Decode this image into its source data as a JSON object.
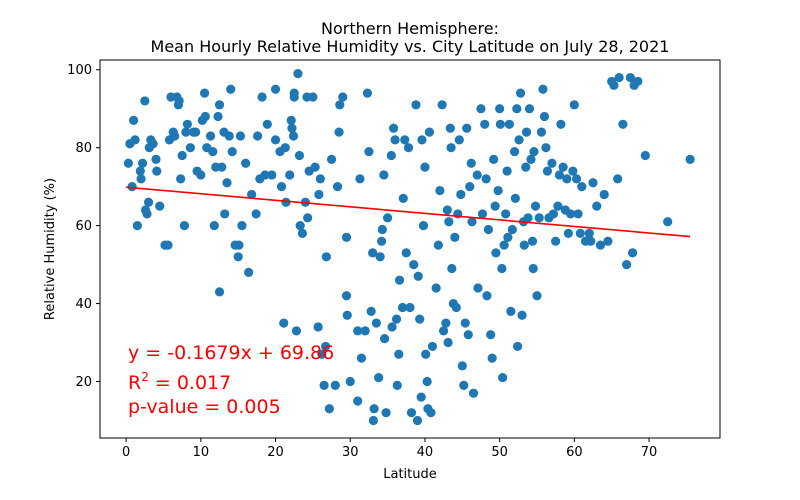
{
  "chart_data": {
    "type": "scatter",
    "title_line1": "Northern Hemisphere:",
    "title_line2": "Mean Hourly Relative Humidity vs. City Latitude  on July 28, 2021",
    "xlabel": "Latitude",
    "ylabel": "Relative Humidity (%)",
    "xlim": [
      -3.5,
      79.5
    ],
    "ylim": [
      5.5,
      102.5
    ],
    "x_ticks": [
      0,
      10,
      20,
      30,
      40,
      50,
      60,
      70
    ],
    "y_ticks": [
      20,
      40,
      60,
      80,
      100
    ],
    "marker_color": "#1f77b4",
    "regression": {
      "slope": -0.1679,
      "intercept": 69.86,
      "x_range": [
        0,
        75.5
      ],
      "color": "#ff0000"
    },
    "annotations": {
      "equation": "y = -0.1679x + 69.86",
      "r2_base": "R",
      "r2_sup": "2",
      "r2_rest": " = 0.017",
      "pvalue": "p-value = 0.005",
      "color": "#ff0000"
    },
    "points": [
      [
        0.3,
        76
      ],
      [
        0.5,
        81
      ],
      [
        0.8,
        70
      ],
      [
        1,
        87
      ],
      [
        1.2,
        82
      ],
      [
        1.5,
        60
      ],
      [
        1.9,
        74
      ],
      [
        2,
        72
      ],
      [
        2.2,
        76
      ],
      [
        2.5,
        92
      ],
      [
        2.6,
        64
      ],
      [
        2.8,
        63
      ],
      [
        3,
        66
      ],
      [
        3.1,
        80
      ],
      [
        3.3,
        82
      ],
      [
        3.6,
        81
      ],
      [
        4,
        77
      ],
      [
        4.1,
        74
      ],
      [
        4.5,
        65
      ],
      [
        5.2,
        55
      ],
      [
        5.6,
        55
      ],
      [
        5.8,
        82
      ],
      [
        6,
        93
      ],
      [
        6.3,
        84
      ],
      [
        6.5,
        83
      ],
      [
        6.8,
        93
      ],
      [
        7,
        91
      ],
      [
        7.1,
        92
      ],
      [
        7.3,
        72
      ],
      [
        7.5,
        78
      ],
      [
        7.8,
        60
      ],
      [
        8,
        84
      ],
      [
        8.2,
        86
      ],
      [
        8.6,
        80
      ],
      [
        9,
        84
      ],
      [
        9.3,
        84
      ],
      [
        9.5,
        74
      ],
      [
        10,
        73
      ],
      [
        10.2,
        87
      ],
      [
        10.5,
        94
      ],
      [
        10.6,
        88
      ],
      [
        10.8,
        80
      ],
      [
        11.3,
        83
      ],
      [
        11.6,
        79
      ],
      [
        11.8,
        60
      ],
      [
        12,
        75
      ],
      [
        12.3,
        88
      ],
      [
        12.5,
        91
      ],
      [
        12.5,
        43
      ],
      [
        12.8,
        75
      ],
      [
        13.1,
        84
      ],
      [
        13.2,
        63
      ],
      [
        13.5,
        71
      ],
      [
        13.8,
        83
      ],
      [
        14,
        95
      ],
      [
        14.2,
        79
      ],
      [
        14.6,
        55
      ],
      [
        15,
        52
      ],
      [
        15.1,
        55
      ],
      [
        15.3,
        83
      ],
      [
        15.5,
        60
      ],
      [
        16,
        76
      ],
      [
        16.4,
        48
      ],
      [
        16.8,
        68
      ],
      [
        17.4,
        63
      ],
      [
        17.6,
        83
      ],
      [
        17.9,
        72
      ],
      [
        18.2,
        93
      ],
      [
        18.6,
        73
      ],
      [
        18.9,
        86
      ],
      [
        19.5,
        73
      ],
      [
        20,
        82
      ],
      [
        20,
        95
      ],
      [
        20.6,
        79
      ],
      [
        20.8,
        70
      ],
      [
        21.1,
        35
      ],
      [
        21.3,
        80
      ],
      [
        21.4,
        66
      ],
      [
        21.9,
        73
      ],
      [
        22.1,
        87
      ],
      [
        22.2,
        85
      ],
      [
        22.4,
        83
      ],
      [
        22.5,
        93
      ],
      [
        22.5,
        94
      ],
      [
        22.8,
        33
      ],
      [
        23,
        99
      ],
      [
        23.2,
        78
      ],
      [
        23.3,
        60
      ],
      [
        23.6,
        58
      ],
      [
        24,
        66
      ],
      [
        24.2,
        93
      ],
      [
        24.3,
        62
      ],
      [
        24.5,
        74
      ],
      [
        25,
        93
      ],
      [
        25.3,
        75
      ],
      [
        25.7,
        34
      ],
      [
        25.8,
        68
      ],
      [
        26,
        72
      ],
      [
        26.2,
        27
      ],
      [
        26.5,
        19
      ],
      [
        26.7,
        29
      ],
      [
        26.8,
        52
      ],
      [
        27.2,
        13
      ],
      [
        27.5,
        77
      ],
      [
        28,
        19
      ],
      [
        28.3,
        70
      ],
      [
        28.5,
        84
      ],
      [
        28.6,
        91
      ],
      [
        29,
        93
      ],
      [
        29.5,
        57
      ],
      [
        29.5,
        42
      ],
      [
        29.6,
        37
      ],
      [
        30,
        20
      ],
      [
        31,
        15
      ],
      [
        31,
        33
      ],
      [
        31.3,
        72
      ],
      [
        31.5,
        26
      ],
      [
        32,
        33
      ],
      [
        32.3,
        94
      ],
      [
        32.5,
        79
      ],
      [
        32.8,
        38
      ],
      [
        33,
        53
      ],
      [
        33.1,
        10
      ],
      [
        33.2,
        13
      ],
      [
        33.5,
        35
      ],
      [
        33.8,
        21
      ],
      [
        34,
        52
      ],
      [
        34.2,
        56
      ],
      [
        34.3,
        59
      ],
      [
        34.5,
        73
      ],
      [
        34.6,
        31
      ],
      [
        34.8,
        12
      ],
      [
        35,
        62
      ],
      [
        35.5,
        78
      ],
      [
        35.6,
        34
      ],
      [
        35.8,
        85
      ],
      [
        36,
        82
      ],
      [
        36.2,
        36
      ],
      [
        36.3,
        19
      ],
      [
        36.5,
        27
      ],
      [
        36.6,
        46
      ],
      [
        37,
        39
      ],
      [
        37.1,
        67
      ],
      [
        37.3,
        82
      ],
      [
        37.5,
        53
      ],
      [
        37.8,
        80
      ],
      [
        38,
        39
      ],
      [
        38.2,
        12
      ],
      [
        38.5,
        50
      ],
      [
        38.8,
        91
      ],
      [
        39,
        10
      ],
      [
        39.1,
        47
      ],
      [
        39.3,
        36
      ],
      [
        39.5,
        16
      ],
      [
        39.6,
        82
      ],
      [
        39.8,
        60
      ],
      [
        40,
        75
      ],
      [
        40.1,
        27
      ],
      [
        40.3,
        20
      ],
      [
        40.4,
        13
      ],
      [
        40.6,
        84
      ],
      [
        40.8,
        12
      ],
      [
        41,
        29
      ],
      [
        41.5,
        44
      ],
      [
        41.8,
        55
      ],
      [
        42,
        69
      ],
      [
        42.3,
        91
      ],
      [
        42.5,
        33
      ],
      [
        42.8,
        35
      ],
      [
        43,
        64
      ],
      [
        43.1,
        30
      ],
      [
        43.2,
        61
      ],
      [
        43.4,
        85
      ],
      [
        43.5,
        80
      ],
      [
        43.6,
        49
      ],
      [
        43.8,
        40
      ],
      [
        44,
        57
      ],
      [
        44.2,
        39
      ],
      [
        44.4,
        63
      ],
      [
        44.6,
        82
      ],
      [
        44.8,
        68
      ],
      [
        45,
        24
      ],
      [
        45.2,
        19
      ],
      [
        45.4,
        35
      ],
      [
        45.6,
        85
      ],
      [
        45.8,
        32
      ],
      [
        46,
        70
      ],
      [
        46.2,
        76
      ],
      [
        46.3,
        61
      ],
      [
        46.5,
        17
      ],
      [
        47,
        73
      ],
      [
        47.1,
        44
      ],
      [
        47.5,
        90
      ],
      [
        47.7,
        63
      ],
      [
        48,
        86
      ],
      [
        48.2,
        72
      ],
      [
        48.3,
        42
      ],
      [
        48.5,
        59
      ],
      [
        48.8,
        32
      ],
      [
        49,
        26
      ],
      [
        49.2,
        77
      ],
      [
        49.4,
        65
      ],
      [
        49.5,
        53
      ],
      [
        49.8,
        69
      ],
      [
        50,
        90
      ],
      [
        50.1,
        86
      ],
      [
        50.3,
        49
      ],
      [
        50.4,
        21
      ],
      [
        50.6,
        55
      ],
      [
        50.8,
        63
      ],
      [
        51,
        74
      ],
      [
        51.1,
        57
      ],
      [
        51.3,
        86
      ],
      [
        51.5,
        38
      ],
      [
        51.7,
        59
      ],
      [
        52,
        79
      ],
      [
        52.1,
        67
      ],
      [
        52.3,
        90
      ],
      [
        52.4,
        29
      ],
      [
        52.6,
        82
      ],
      [
        52.8,
        94
      ],
      [
        53,
        37
      ],
      [
        53.2,
        61
      ],
      [
        53.3,
        55
      ],
      [
        53.5,
        75
      ],
      [
        53.6,
        84
      ],
      [
        53.8,
        62
      ],
      [
        54,
        90
      ],
      [
        54.2,
        77
      ],
      [
        54.4,
        56
      ],
      [
        54.5,
        49
      ],
      [
        54.6,
        79
      ],
      [
        54.8,
        65
      ],
      [
        55,
        42
      ],
      [
        55.3,
        62
      ],
      [
        55.6,
        84
      ],
      [
        55.8,
        95
      ],
      [
        56,
        88
      ],
      [
        56.2,
        80
      ],
      [
        56.4,
        74
      ],
      [
        56.6,
        62
      ],
      [
        57,
        76
      ],
      [
        57.2,
        63
      ],
      [
        57.5,
        56
      ],
      [
        57.8,
        65
      ],
      [
        58,
        73
      ],
      [
        58.2,
        86
      ],
      [
        58.5,
        75
      ],
      [
        58.8,
        64
      ],
      [
        59,
        72
      ],
      [
        59.2,
        58
      ],
      [
        59.5,
        63
      ],
      [
        59.8,
        74
      ],
      [
        60,
        91
      ],
      [
        60.3,
        72
      ],
      [
        60.5,
        63
      ],
      [
        60.8,
        58
      ],
      [
        61,
        70
      ],
      [
        61.5,
        56
      ],
      [
        62,
        58
      ],
      [
        62.2,
        56
      ],
      [
        62.5,
        71
      ],
      [
        63,
        65
      ],
      [
        63.5,
        55
      ],
      [
        64,
        68
      ],
      [
        64.5,
        56
      ],
      [
        65,
        97
      ],
      [
        65.3,
        96
      ],
      [
        65.8,
        72
      ],
      [
        66,
        98
      ],
      [
        66.5,
        86
      ],
      [
        67,
        50
      ],
      [
        67.5,
        98
      ],
      [
        67.8,
        53
      ],
      [
        68,
        96
      ],
      [
        68.5,
        97
      ],
      [
        69.5,
        78
      ],
      [
        72.5,
        61
      ],
      [
        75.5,
        77
      ]
    ]
  }
}
